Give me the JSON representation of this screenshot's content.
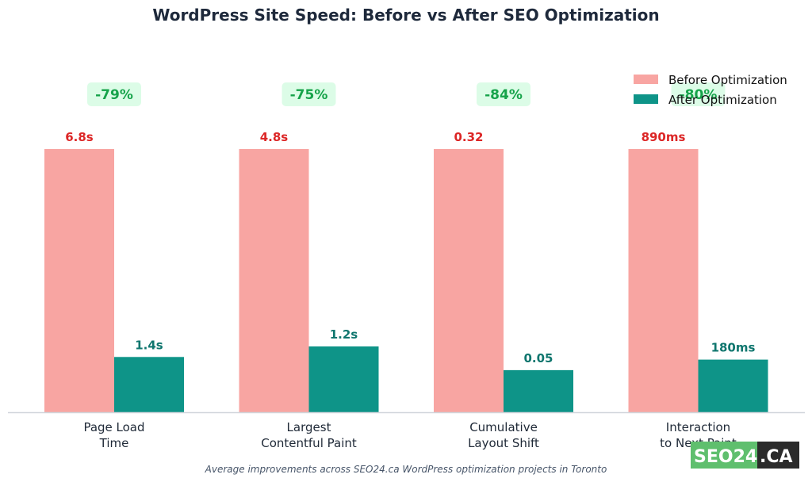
{
  "colors": {
    "before": "#f8a5a2",
    "after": "#0e9488",
    "before_label": "#dc2626",
    "after_label": "#0f766e",
    "pct_text": "#16a34a",
    "pct_bg": "#dcfce7",
    "axis": "#d1d5db",
    "logo_green": "#5fbf6e",
    "logo_dark": "#2b2b2b"
  },
  "caption": "Average improvements across SEO24.ca WordPress optimization projects in Toronto",
  "logo": {
    "text_left": "SEO24",
    "text_right": ".CA"
  },
  "chart_data": {
    "type": "bar",
    "title": "WordPress Site Speed: Before vs After SEO Optimization",
    "xlabel": "",
    "ylabel": "",
    "categories": [
      [
        "Page Load",
        "Time"
      ],
      [
        "Largest",
        "Contentful Paint"
      ],
      [
        "Cumulative",
        "Layout Shift"
      ],
      [
        "Interaction",
        "to Next Paint"
      ]
    ],
    "series": [
      {
        "name": "Before Optimization",
        "relative_values": [
          100,
          100,
          100,
          100
        ],
        "labels": [
          "6.8s",
          "4.8s",
          "0.32",
          "890ms"
        ]
      },
      {
        "name": "After Optimization",
        "relative_values": [
          21,
          25,
          16,
          20
        ],
        "labels": [
          "1.4s",
          "1.2s",
          "0.05",
          "180ms"
        ]
      }
    ],
    "improvements": [
      "-79%",
      "-75%",
      "-84%",
      "-80%"
    ],
    "ylim": [
      0,
      100
    ],
    "grid": false,
    "legend_position": "top-right"
  }
}
